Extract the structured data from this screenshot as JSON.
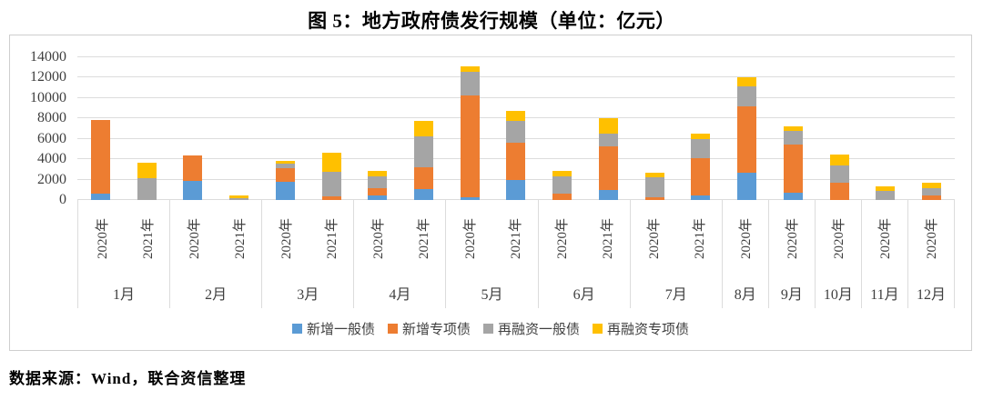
{
  "title": "图 5：地方政府债发行规模（单位：亿元）",
  "footer": "数据来源：Wind，联合资信整理",
  "chart_data": {
    "type": "bar",
    "stacked": true,
    "title": "图 5：地方政府债发行规模（单位：亿元）",
    "unit": "亿元",
    "ylim": [
      0,
      14000
    ],
    "ystep": 2000,
    "yticks": [
      0,
      2000,
      4000,
      6000,
      8000,
      10000,
      12000,
      14000
    ],
    "grid": true,
    "legend_position": "bottom",
    "series": [
      {
        "name": "新增一般债",
        "color": "#5B9BD5"
      },
      {
        "name": "新增专项债",
        "color": "#ED7D31"
      },
      {
        "name": "再融资一般债",
        "color": "#A5A5A5"
      },
      {
        "name": "再融资专项债",
        "color": "#FFC000"
      }
    ],
    "months": [
      {
        "label": "1月",
        "bars": [
          {
            "year": "2020年",
            "values": [
              626,
              7224,
              0,
              0
            ]
          },
          {
            "year": "2021年",
            "values": [
              0,
              0,
              2100,
              1520
            ]
          }
        ]
      },
      {
        "label": "2月",
        "bars": [
          {
            "year": "2020年",
            "values": [
              1900,
              2480,
              0,
              0
            ]
          },
          {
            "year": "2021年",
            "values": [
              0,
              0,
              180,
              300
            ]
          }
        ]
      },
      {
        "label": "3月",
        "bars": [
          {
            "year": "2020年",
            "values": [
              1800,
              1300,
              450,
              250
            ]
          },
          {
            "year": "2021年",
            "values": [
              0,
              360,
              2450,
              1800
            ]
          }
        ]
      },
      {
        "label": "4月",
        "bars": [
          {
            "year": "2020年",
            "values": [
              450,
              700,
              1150,
              570
            ]
          },
          {
            "year": "2021年",
            "values": [
              1100,
              2100,
              3000,
              1550
            ]
          }
        ]
      },
      {
        "label": "5月",
        "bars": [
          {
            "year": "2020年",
            "values": [
              250,
              10030,
              2280,
              520
            ]
          },
          {
            "year": "2021年",
            "values": [
              2000,
              3600,
              2150,
              1000
            ]
          }
        ]
      },
      {
        "label": "6月",
        "bars": [
          {
            "year": "2020年",
            "values": [
              0,
              650,
              1700,
              520
            ]
          },
          {
            "year": "2021年",
            "values": [
              1000,
              4300,
              1200,
              1500
            ]
          }
        ]
      },
      {
        "label": "7月",
        "bars": [
          {
            "year": "2020年",
            "values": [
              0,
              300,
              1900,
              520
            ]
          },
          {
            "year": "2021年",
            "values": [
              450,
              3650,
              1850,
              600
            ]
          }
        ]
      },
      {
        "label": "8月",
        "bars": [
          {
            "year": "2020年",
            "values": [
              2650,
              6550,
              1950,
              850
            ]
          }
        ]
      },
      {
        "label": "9月",
        "bars": [
          {
            "year": "2020年",
            "values": [
              700,
              4700,
              1400,
              400
            ]
          }
        ]
      },
      {
        "label": "10月",
        "bars": [
          {
            "year": "2020年",
            "values": [
              0,
              1700,
              1700,
              1030
            ]
          }
        ]
      },
      {
        "label": "11月",
        "bars": [
          {
            "year": "2020年",
            "values": [
              0,
              0,
              900,
              400
            ]
          }
        ]
      },
      {
        "label": "12月",
        "bars": [
          {
            "year": "2020年",
            "values": [
              0,
              450,
              700,
              550
            ]
          }
        ]
      }
    ]
  }
}
